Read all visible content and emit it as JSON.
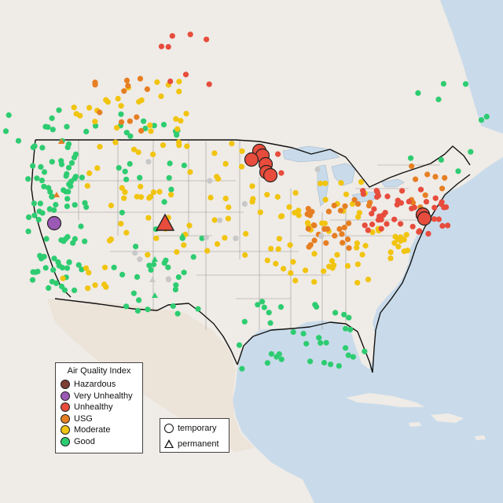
{
  "map": {
    "colors": {
      "water": "#c9dbea",
      "land": "#efebe6",
      "land_warm": "#ece3d9",
      "state_line": "#9a9a9a",
      "border_line": "#111111",
      "marker_outline": "#222222"
    },
    "aqi_categories": {
      "hazardous": "#7e3f34",
      "very_unhealthy": "#9b59b6",
      "unhealthy": "#e74c3c",
      "usg": "#e67e22",
      "moderate": "#f1c40f",
      "good": "#2ecc71",
      "no_data": "#c8c8c8"
    }
  },
  "legend_aqi": {
    "title": "Air Quality Index",
    "items": [
      {
        "label": "Hazardous",
        "color": "#7e3f34"
      },
      {
        "label": "Very Unhealthy",
        "color": "#9b59b6"
      },
      {
        "label": "Unhealthy",
        "color": "#e74c3c"
      },
      {
        "label": "USG",
        "color": "#e67e22"
      },
      {
        "label": "Moderate",
        "color": "#f1c40f"
      },
      {
        "label": "Good",
        "color": "#2ecc71"
      }
    ]
  },
  "legend_type": {
    "items": [
      {
        "label": "temporary",
        "shape": "circle-icon"
      },
      {
        "label": "permanent",
        "shape": "triangle-icon"
      }
    ]
  }
}
